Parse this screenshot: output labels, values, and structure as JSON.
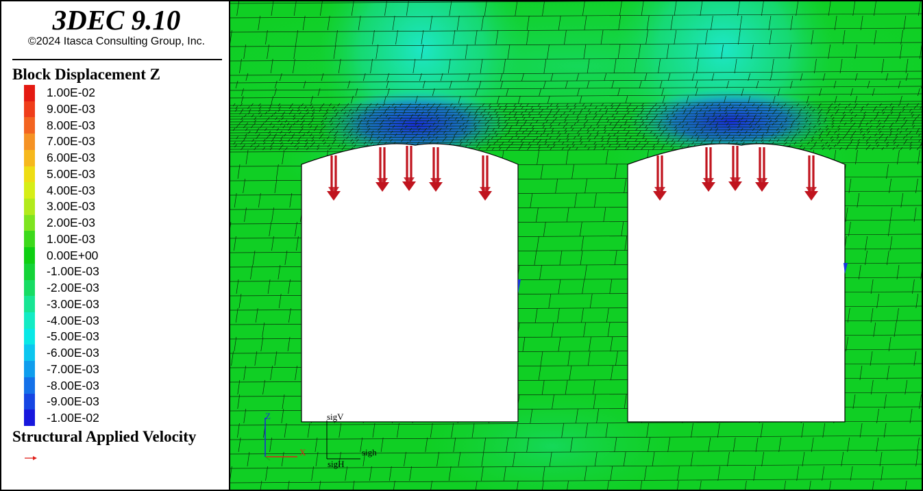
{
  "app": {
    "title": "3DEC 9.10",
    "copyright": "©2024 Itasca Consulting Group, Inc."
  },
  "legend": {
    "contour_title": "Block Displacement Z",
    "ticks": [
      "1.00E-02",
      "9.00E-03",
      "8.00E-03",
      "7.00E-03",
      "6.00E-03",
      "5.00E-03",
      "4.00E-03",
      "3.00E-03",
      "2.00E-03",
      "1.00E-03",
      "0.00E+00",
      "-1.00E-03",
      "-2.00E-03",
      "-3.00E-03",
      "-4.00E-03",
      "-5.00E-03",
      "-6.00E-03",
      "-7.00E-03",
      "-8.00E-03",
      "-9.00E-03",
      "-1.00E-02"
    ],
    "colors": [
      "#e41a12",
      "#ef3d1a",
      "#f36420",
      "#f59224",
      "#f6b81d",
      "#eedd14",
      "#d6ee17",
      "#b2ea1c",
      "#7ee41f",
      "#3cd91b",
      "#0ecf12",
      "#14d337",
      "#17dc63",
      "#17e593",
      "#13ebc4",
      "#09e8e6",
      "#0cc6ef",
      "#0f9ded",
      "#1471e9",
      "#1646e3",
      "#1717dd"
    ],
    "velocity_title": "Structural Applied Velocity",
    "velocity_color": "#e0201a"
  },
  "axes": {
    "z": "Z",
    "x": "X"
  },
  "stress_labels": {
    "sigV": "sigV",
    "sigh": "sigh",
    "sigH": "sigH"
  },
  "scene": {
    "block_color": "#12cf2c",
    "cyan_color": "#1de7c7",
    "deep_blue": "#1733de",
    "arrow_color": "#c0141e"
  }
}
